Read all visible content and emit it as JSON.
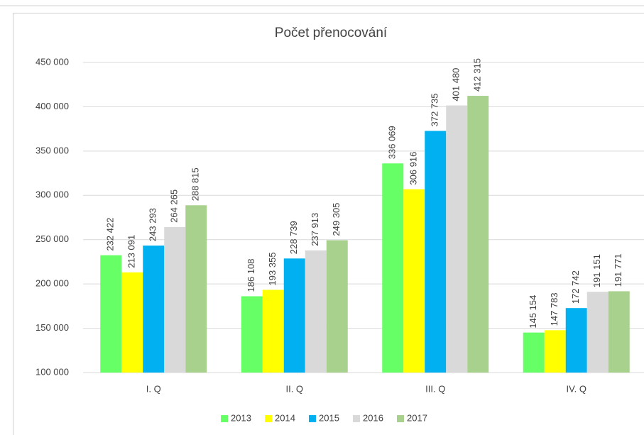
{
  "chart_data": {
    "type": "bar",
    "title": "Počet přenocování",
    "categories": [
      "I. Q",
      "II. Q",
      "III. Q",
      "IV. Q"
    ],
    "series": [
      {
        "name": "2013",
        "color": "#66ff66",
        "values": [
          232422,
          186108,
          336069,
          145154
        ],
        "value_labels": [
          "232 422",
          "186 108",
          "336 069",
          "145 154"
        ]
      },
      {
        "name": "2014",
        "color": "#ffff00",
        "values": [
          213091,
          193355,
          306916,
          147783
        ],
        "value_labels": [
          "213 091",
          "193 355",
          "306 916",
          "147 783"
        ]
      },
      {
        "name": "2015",
        "color": "#00b0f0",
        "values": [
          243293,
          228739,
          372735,
          172742
        ],
        "value_labels": [
          "243 293",
          "228 739",
          "372 735",
          "172 742"
        ]
      },
      {
        "name": "2016",
        "color": "#d9d9d9",
        "values": [
          264265,
          237913,
          401480,
          191151
        ],
        "value_labels": [
          "264 265",
          "237 913",
          "401 480",
          "191 151"
        ]
      },
      {
        "name": "2017",
        "color": "#a9d18e",
        "values": [
          288815,
          249305,
          412315,
          191771
        ],
        "value_labels": [
          "288 815",
          "249 305",
          "412 315",
          "191 771"
        ]
      }
    ],
    "ylim": [
      100000,
      450000
    ],
    "yticks": [
      {
        "value": 100000,
        "label": "100 000"
      },
      {
        "value": 150000,
        "label": "150 000"
      },
      {
        "value": 200000,
        "label": "200 000"
      },
      {
        "value": 250000,
        "label": "250 000"
      },
      {
        "value": 300000,
        "label": "300 000"
      },
      {
        "value": 350000,
        "label": "350 000"
      },
      {
        "value": 400000,
        "label": "400 000"
      },
      {
        "value": 450000,
        "label": "450 000"
      }
    ],
    "grid": true,
    "legend": "bottom"
  }
}
